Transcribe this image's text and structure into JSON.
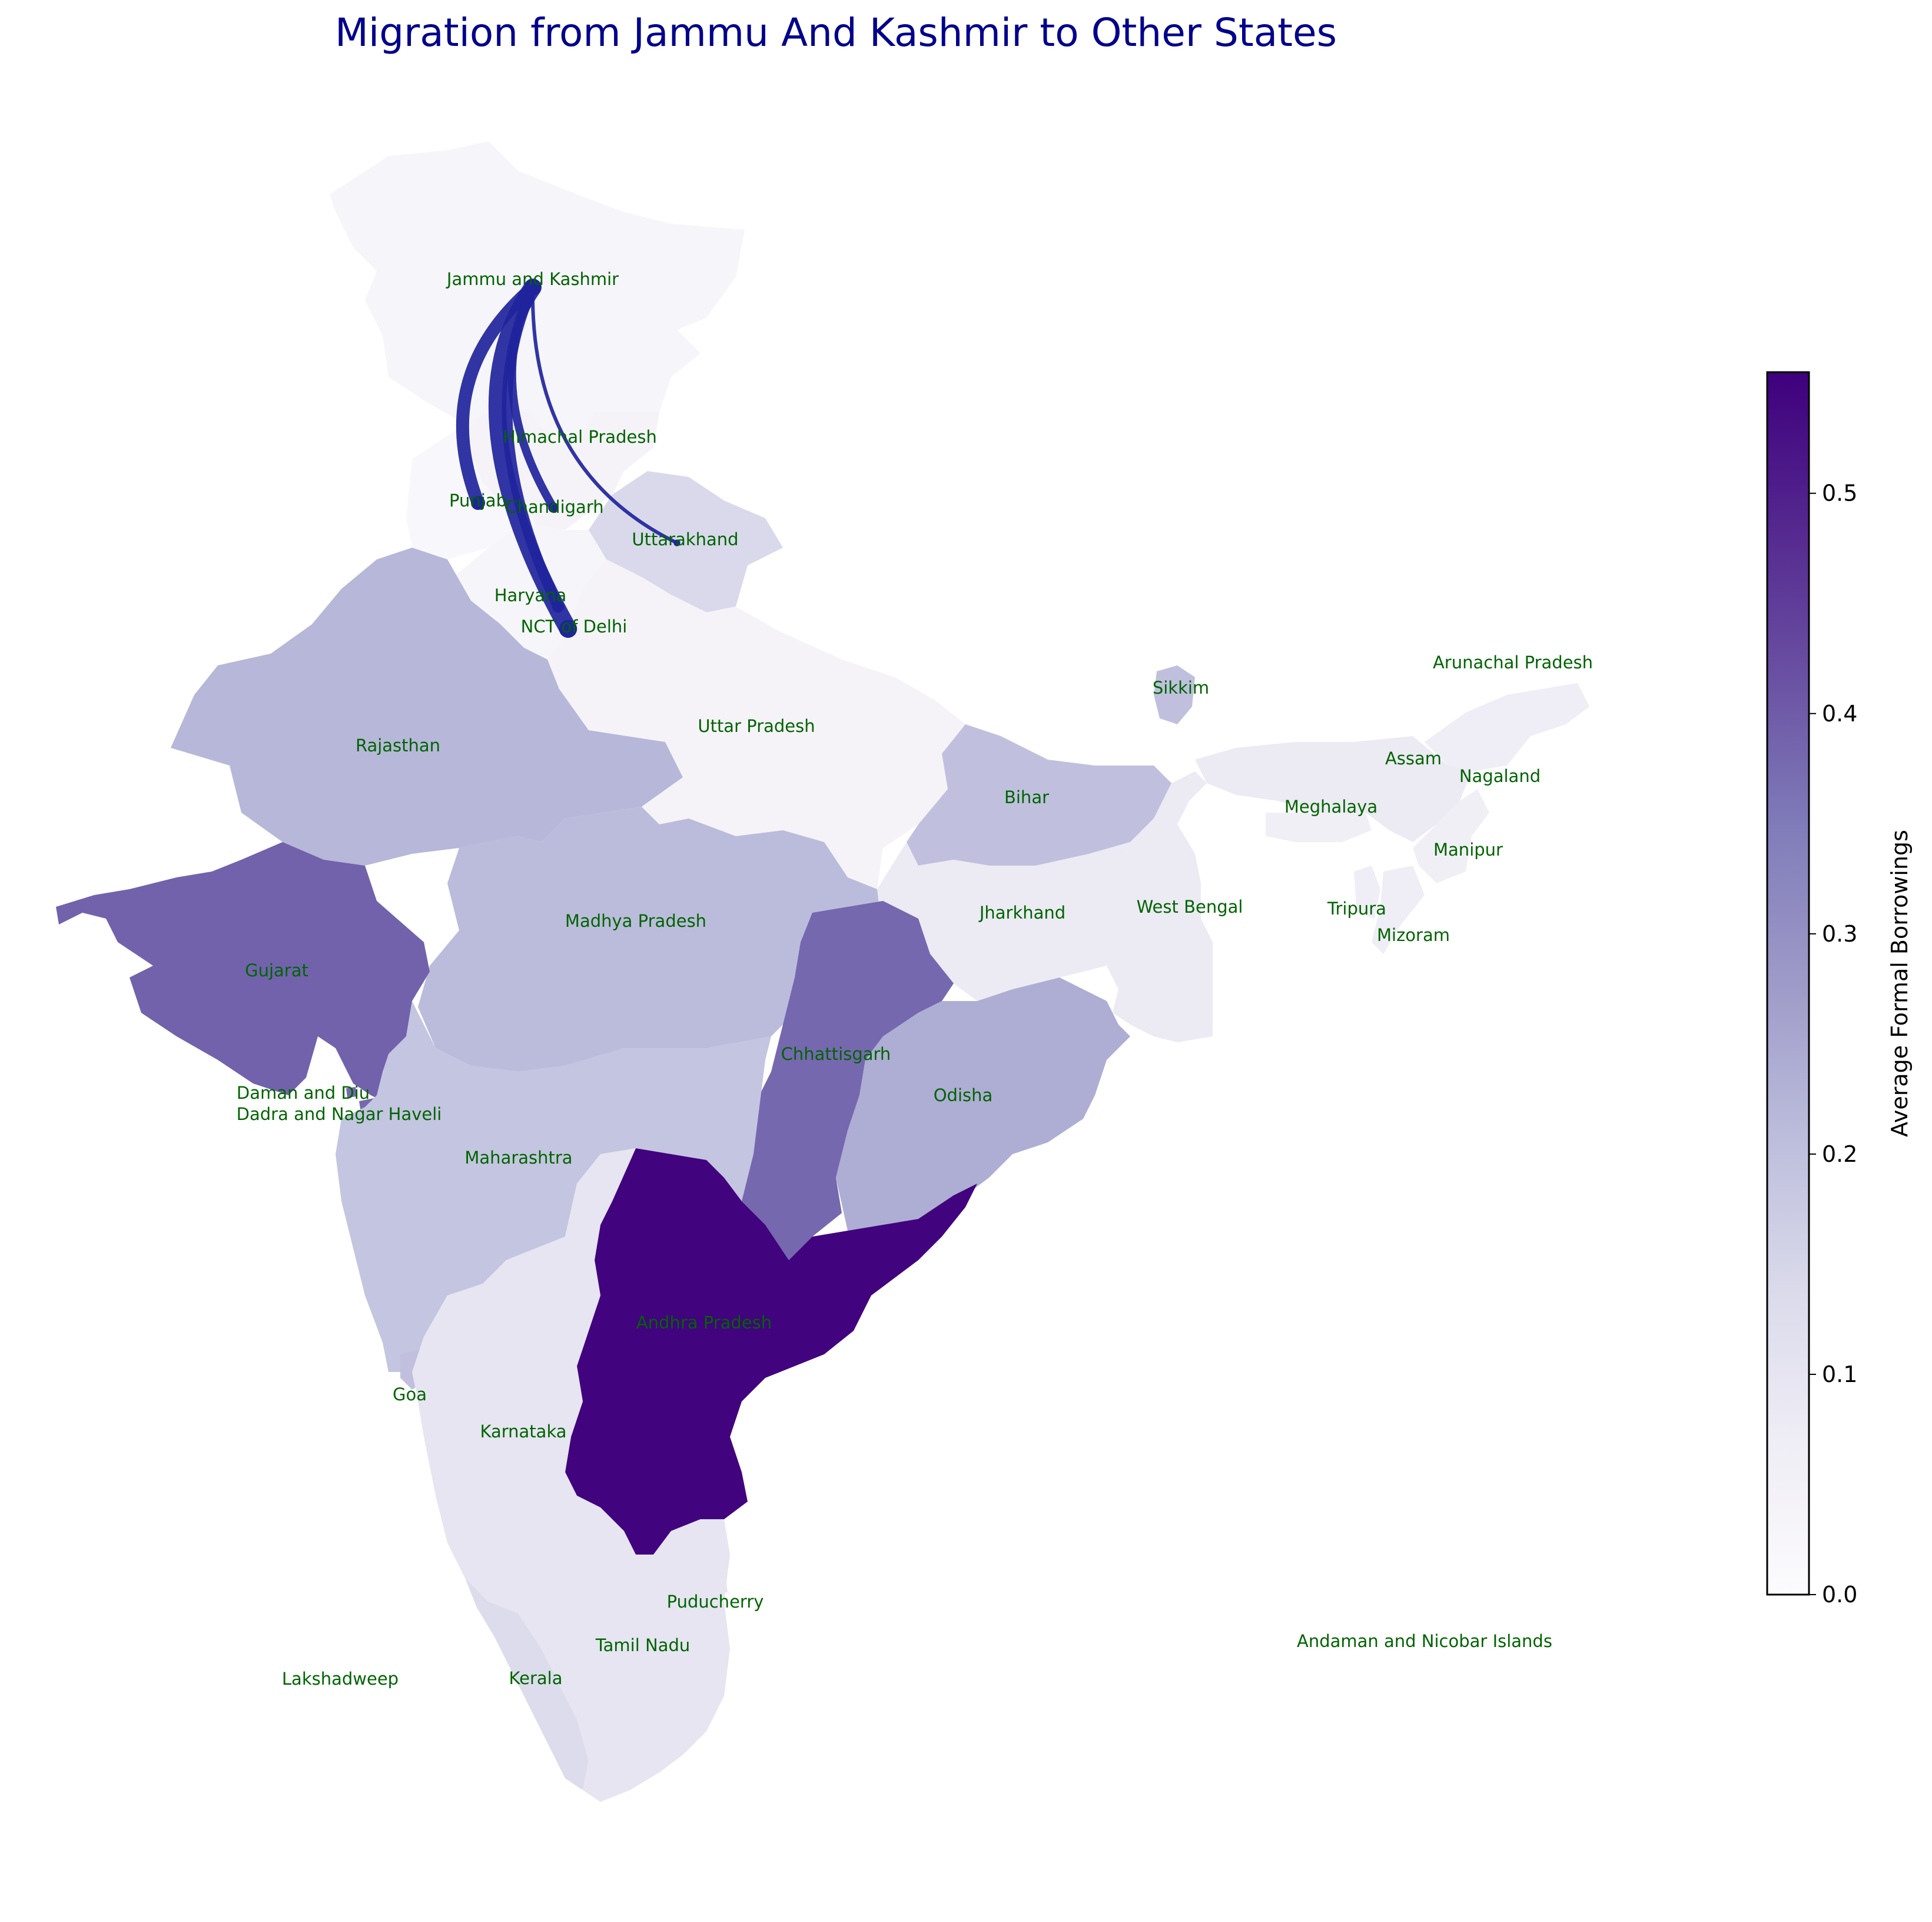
{
  "title": "Migration from Jammu And Kashmir to Other States",
  "colorbar": {
    "label": "Average Formal Borrowings",
    "min": 0.0,
    "max": 0.555,
    "ticks": [
      {
        "value": 0.0,
        "text": "0.0"
      },
      {
        "value": 0.1,
        "text": "0.1"
      },
      {
        "value": 0.2,
        "text": "0.2"
      },
      {
        "value": 0.3,
        "text": "0.3"
      },
      {
        "value": 0.4,
        "text": "0.4"
      },
      {
        "value": 0.5,
        "text": "0.5"
      }
    ],
    "colormap": "Purples",
    "stops": [
      "#fcfbfd",
      "#efedf5",
      "#dadaeb",
      "#bcbddc",
      "#9e9ac8",
      "#807dba",
      "#6a51a3",
      "#54278f",
      "#3f007d"
    ]
  },
  "source_state": "Jammu and Kashmir",
  "migration_color": "#1f249c",
  "migrations": [
    {
      "to": "Punjab",
      "weight": 5
    },
    {
      "to": "Chandigarh",
      "weight": 3
    },
    {
      "to": "NCT of Delhi",
      "weight": 7
    },
    {
      "to": "Haryana",
      "weight": 4
    },
    {
      "to": "Uttarakhand",
      "weight": 1
    }
  ],
  "states": [
    {
      "name": "Jammu and Kashmir",
      "value": 0.03
    },
    {
      "name": "Himachal Pradesh",
      "value": 0.04
    },
    {
      "name": "Punjab",
      "value": 0.02
    },
    {
      "name": "Chandigarh",
      "value": 0.02
    },
    {
      "name": "Uttarakhand",
      "value": 0.14
    },
    {
      "name": "Haryana",
      "value": 0.03
    },
    {
      "name": "NCT of Delhi",
      "value": 0.03
    },
    {
      "name": "Rajasthan",
      "value": 0.22
    },
    {
      "name": "Uttar Pradesh",
      "value": 0.04
    },
    {
      "name": "Bihar",
      "value": 0.2
    },
    {
      "name": "Sikkim",
      "value": 0.2
    },
    {
      "name": "Arunachal Pradesh",
      "value": 0.07
    },
    {
      "name": "Assam",
      "value": 0.08
    },
    {
      "name": "Nagaland",
      "value": 0.06
    },
    {
      "name": "Meghalaya",
      "value": 0.06
    },
    {
      "name": "Manipur",
      "value": 0.06
    },
    {
      "name": "Tripura",
      "value": 0.07
    },
    {
      "name": "Mizoram",
      "value": 0.07
    },
    {
      "name": "West Bengal",
      "value": 0.08
    },
    {
      "name": "Jharkhand",
      "value": 0.08
    },
    {
      "name": "Madhya Pradesh",
      "value": 0.21
    },
    {
      "name": "Gujarat",
      "value": 0.39
    },
    {
      "name": "Daman and Diu",
      "value": 0.38
    },
    {
      "name": "Dadra and Nagar Haveli",
      "value": 0.38
    },
    {
      "name": "Chhattisgarh",
      "value": 0.38
    },
    {
      "name": "Odisha",
      "value": 0.24
    },
    {
      "name": "Maharashtra",
      "value": 0.19
    },
    {
      "name": "Andhra Pradesh",
      "value": 0.55
    },
    {
      "name": "Goa",
      "value": 0.2
    },
    {
      "name": "Karnataka",
      "value": 0.1
    },
    {
      "name": "Puducherry",
      "value": 0.1
    },
    {
      "name": "Tamil Nadu",
      "value": 0.1
    },
    {
      "name": "Kerala",
      "value": 0.13
    },
    {
      "name": "Lakshadweep",
      "value": 0.0
    },
    {
      "name": "Andaman and Nicobar Islands",
      "value": 0.0
    }
  ]
}
